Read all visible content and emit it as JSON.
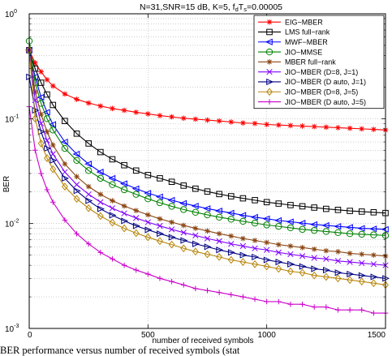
{
  "chart_data": {
    "type": "line",
    "title": "N=31,SNR=15 dB, K=5, f_dT_s=0.00005",
    "title_parts": {
      "pre": "N=31,SNR=15 dB, K=5, f",
      "sub1": "d",
      "mid": "T",
      "sub2": "s",
      "post": "=0.00005"
    },
    "xlabel": "number of received symbols",
    "ylabel": "BER",
    "xlim": [
      0,
      1500
    ],
    "ylim": [
      0.001,
      1
    ],
    "yscale": "log",
    "xticks": [
      0,
      500,
      1000,
      1500
    ],
    "xtick_labels": [
      "0",
      "500",
      "1000",
      "1500"
    ],
    "yticks": [
      0.001,
      0.01,
      0.1,
      1
    ],
    "ytick_labels": [
      {
        "base": "10",
        "exp": "-3"
      },
      {
        "base": "10",
        "exp": "-2"
      },
      {
        "base": "10",
        "exp": "-1"
      },
      {
        "base": "10",
        "exp": "0"
      }
    ],
    "grid": "dotted",
    "legend_position": "top-right",
    "x": [
      0,
      25,
      50,
      75,
      100,
      150,
      200,
      250,
      300,
      350,
      400,
      450,
      500,
      550,
      600,
      650,
      700,
      750,
      800,
      850,
      900,
      950,
      1000,
      1050,
      1100,
      1150,
      1200,
      1250,
      1300,
      1350,
      1400,
      1450,
      1500
    ],
    "series": [
      {
        "name": "EIG−MBER",
        "color": "#ff0000",
        "marker": "star",
        "values": [
          0.45,
          0.34,
          0.28,
          0.235,
          0.205,
          0.172,
          0.153,
          0.141,
          0.132,
          0.125,
          0.12,
          0.115,
          0.111,
          0.107,
          0.104,
          0.101,
          0.099,
          0.097,
          0.095,
          0.093,
          0.091,
          0.09,
          0.088,
          0.087,
          0.086,
          0.085,
          0.084,
          0.083,
          0.082,
          0.081,
          0.08,
          0.079,
          0.078
        ]
      },
      {
        "name": "LMS full−rank",
        "color": "#000000",
        "marker": "square",
        "values": [
          0.45,
          0.3,
          0.22,
          0.17,
          0.135,
          0.095,
          0.072,
          0.058,
          0.048,
          0.041,
          0.036,
          0.032,
          0.029,
          0.027,
          0.025,
          0.023,
          0.0215,
          0.0202,
          0.0191,
          0.0182,
          0.0174,
          0.0167,
          0.016,
          0.0155,
          0.015,
          0.0146,
          0.0142,
          0.0138,
          0.0135,
          0.0132,
          0.013,
          0.0128,
          0.0126
        ]
      },
      {
        "name": "MWF−MBER",
        "color": "#0000ff",
        "marker": "triangle-left",
        "values": [
          0.45,
          0.25,
          0.16,
          0.115,
          0.088,
          0.06,
          0.046,
          0.037,
          0.031,
          0.027,
          0.024,
          0.0215,
          0.0195,
          0.018,
          0.0167,
          0.0156,
          0.0147,
          0.0139,
          0.0132,
          0.0126,
          0.012,
          0.0115,
          0.0111,
          0.0107,
          0.0104,
          0.0101,
          0.0098,
          0.0096,
          0.0094,
          0.0092,
          0.009,
          0.0089,
          0.0088
        ]
      },
      {
        "name": "JIO−MMSE",
        "color": "#008000",
        "marker": "circle",
        "values": [
          0.55,
          0.22,
          0.14,
          0.1,
          0.078,
          0.052,
          0.04,
          0.032,
          0.027,
          0.0235,
          0.021,
          0.019,
          0.0172,
          0.0158,
          0.0146,
          0.0136,
          0.0128,
          0.0121,
          0.0115,
          0.011,
          0.0105,
          0.0101,
          0.0097,
          0.0094,
          0.0091,
          0.0088,
          0.0086,
          0.0084,
          0.0082,
          0.008,
          0.0079,
          0.0078,
          0.0077
        ]
      },
      {
        "name": "MBER full−rank",
        "color": "#8b4513",
        "marker": "star",
        "values": [
          0.45,
          0.18,
          0.11,
          0.075,
          0.056,
          0.037,
          0.028,
          0.0225,
          0.019,
          0.0165,
          0.0147,
          0.0133,
          0.0121,
          0.0111,
          0.0103,
          0.0096,
          0.009,
          0.0085,
          0.008,
          0.0076,
          0.0072,
          0.0069,
          0.0066,
          0.0063,
          0.0061,
          0.0059,
          0.0057,
          0.0055,
          0.0054,
          0.0052,
          0.0051,
          0.005,
          0.0049
        ]
      },
      {
        "name": "JIO−MBER (D=8, J=1)",
        "color": "#8000ff",
        "marker": "x",
        "values": [
          0.45,
          0.15,
          0.09,
          0.062,
          0.046,
          0.031,
          0.0235,
          0.019,
          0.016,
          0.014,
          0.0125,
          0.0113,
          0.0103,
          0.0095,
          0.0088,
          0.0082,
          0.0077,
          0.0072,
          0.0068,
          0.0064,
          0.0061,
          0.0058,
          0.0056,
          0.0053,
          0.0051,
          0.0049,
          0.0047,
          0.0046,
          0.0044,
          0.0043,
          0.0042,
          0.0041,
          0.004
        ]
      },
      {
        "name": "JIO−MBER (D auto, J=1)",
        "color": "#000080",
        "marker": "triangle-right",
        "values": [
          0.25,
          0.12,
          0.075,
          0.052,
          0.04,
          0.027,
          0.0205,
          0.0165,
          0.0138,
          0.012,
          0.0106,
          0.0095,
          0.0087,
          0.008,
          0.0074,
          0.0069,
          0.0064,
          0.006,
          0.0056,
          0.0053,
          0.005,
          0.0048,
          0.0045,
          0.0043,
          0.0041,
          0.0039,
          0.0037,
          0.0036,
          0.0034,
          0.0033,
          0.0032,
          0.0031,
          0.003
        ]
      },
      {
        "name": "JIO−MBER (D=8, J=5)",
        "color": "#b8860b",
        "marker": "diamond",
        "values": [
          0.45,
          0.1,
          0.058,
          0.042,
          0.033,
          0.0225,
          0.0172,
          0.014,
          0.0118,
          0.0102,
          0.009,
          0.0081,
          0.0074,
          0.0068,
          0.0063,
          0.0058,
          0.0054,
          0.0051,
          0.0048,
          0.0045,
          0.0043,
          0.0041,
          0.0039,
          0.0037,
          0.0035,
          0.0034,
          0.0032,
          0.0031,
          0.003,
          0.0029,
          0.0028,
          0.0027,
          0.0026
        ]
      },
      {
        "name": "JIO−MBER (D auto, J=5)",
        "color": "#cc00cc",
        "marker": "plus",
        "values": [
          0.13,
          0.05,
          0.03,
          0.021,
          0.016,
          0.0108,
          0.008,
          0.0064,
          0.0053,
          0.0046,
          0.004,
          0.0036,
          0.0033,
          0.003,
          0.0028,
          0.0026,
          0.0024,
          0.0023,
          0.0022,
          0.0021,
          0.002,
          0.0019,
          0.0018,
          0.0018,
          0.0017,
          0.0017,
          0.0016,
          0.0016,
          0.0015,
          0.0015,
          0.0015,
          0.0014,
          0.0014
        ]
      }
    ]
  },
  "caption": "BER performance versus number of received symbols (stat"
}
